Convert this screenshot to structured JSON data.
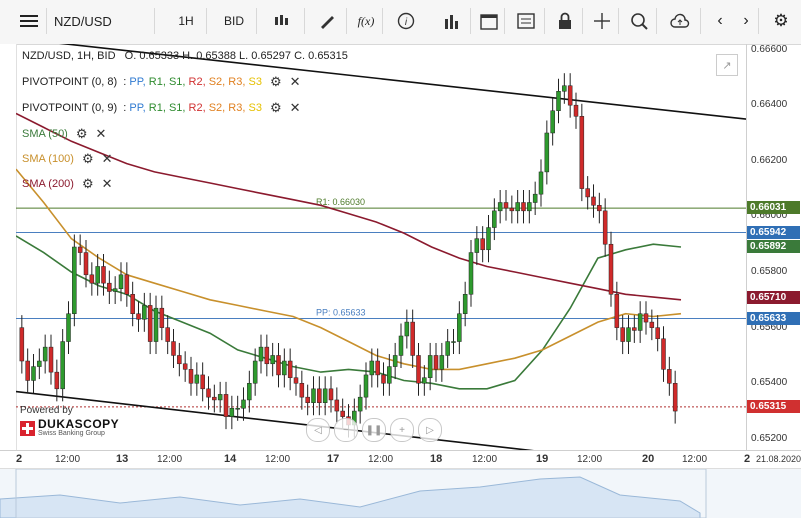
{
  "toolbar": {
    "symbol": "NZD/USD",
    "timeframe": "1H",
    "price_type": "BID",
    "icons": [
      "menu-icon",
      "candles-icon",
      "draw-icon",
      "function-icon",
      "info-icon",
      "bars-icon",
      "calendar-icon",
      "layout-icon",
      "lock-icon",
      "crosshair-icon",
      "zoom-icon",
      "upload-icon",
      "prev-icon",
      "next-icon",
      "settings-icon"
    ]
  },
  "header": {
    "ohlc": "NZD/USD, 1H, BID   O. 0.65333 H. 0.65388 L. 0.65297 C. 0.65315"
  },
  "indicators": [
    {
      "name": "PIVOTPOINT (0, 8)",
      "levels": [
        {
          "t": "PP",
          "c": "#2f7ad1"
        },
        {
          "t": "R1",
          "c": "#2e8b2e"
        },
        {
          "t": "S1",
          "c": "#2e8b2e"
        },
        {
          "t": "R2",
          "c": "#d03030"
        },
        {
          "t": "S2",
          "c": "#e08020"
        },
        {
          "t": "R3",
          "c": "#e08020"
        },
        {
          "t": "S3",
          "c": "#e6c000"
        }
      ]
    },
    {
      "name": "PIVOTPOINT (0, 9)",
      "levels": [
        {
          "t": "PP",
          "c": "#2f7ad1"
        },
        {
          "t": "R1",
          "c": "#2e8b2e"
        },
        {
          "t": "S1",
          "c": "#2e8b2e"
        },
        {
          "t": "R2",
          "c": "#d03030"
        },
        {
          "t": "S2",
          "c": "#e08020"
        },
        {
          "t": "R3",
          "c": "#e08020"
        },
        {
          "t": "S3",
          "c": "#e6c000"
        }
      ]
    },
    {
      "name": "SMA (50)",
      "color": "#3a7a3a"
    },
    {
      "name": "SMA (100)",
      "color": "#c8902c"
    },
    {
      "name": "SMA (200)",
      "color": "#8b1a2e"
    }
  ],
  "brand": {
    "powered": "Powered by",
    "name": "DUKASCOPY",
    "sub": "Swiss Banking Group"
  },
  "chart_data": {
    "type": "line",
    "title": "NZD/USD, 1H, BID",
    "ylim": [
      0.6516,
      0.6662
    ],
    "y_ticks": [
      0.652,
      0.654,
      0.656,
      0.658,
      0.66,
      0.662,
      0.664,
      0.666
    ],
    "x_ticks": [
      "2",
      "12:00",
      "13",
      "12:00",
      "14",
      "12:00",
      "17",
      "12:00",
      "18",
      "12:00",
      "19",
      "12:00",
      "20",
      "12:00",
      "2"
    ],
    "x_day_ticks": [
      "2",
      "13",
      "14",
      "17",
      "18",
      "19",
      "20",
      "2"
    ],
    "corner_date": "21.08.2020",
    "hlines": [
      {
        "name": "R1: 0.66030",
        "value": 0.6603,
        "color": "#4d7a2a",
        "label": "R1: 0.66030"
      },
      {
        "name": "PP: 0.65633",
        "value": 0.65633,
        "color": "#4a7fc0",
        "label": "PP: 0.65633"
      },
      {
        "name": "pp-9",
        "value": 0.65942,
        "color": "#4a7fc0",
        "label": ""
      },
      {
        "name": "last-price",
        "value": 0.65315,
        "color": "#b03030",
        "label": ""
      }
    ],
    "price_tags": [
      {
        "value": 0.66031,
        "text": "0.66031",
        "color": "#4d7a2a"
      },
      {
        "value": 0.65942,
        "text": "0.65942",
        "color": "#2f6fb5"
      },
      {
        "value": 0.65892,
        "text": "0.65892",
        "color": "#3a7a3a"
      },
      {
        "value": 0.6571,
        "text": "0.65710",
        "color": "#8b1a2e"
      },
      {
        "value": 0.65633,
        "text": "0.65633",
        "color": "#2f6fb5"
      },
      {
        "value": 0.65315,
        "text": "0.65315",
        "color": "#d03030"
      }
    ],
    "candles": [
      0.656,
      0.6548,
      0.6541,
      0.6546,
      0.6548,
      0.6553,
      0.6544,
      0.6538,
      0.6555,
      0.6565,
      0.6589,
      0.6587,
      0.6579,
      0.6576,
      0.6582,
      0.6576,
      0.6573,
      0.6574,
      0.6579,
      0.6572,
      0.6565,
      0.6563,
      0.6568,
      0.6555,
      0.6567,
      0.656,
      0.6555,
      0.655,
      0.6547,
      0.6545,
      0.654,
      0.6543,
      0.6538,
      0.6535,
      0.6534,
      0.6536,
      0.6528,
      0.6531,
      0.6531,
      0.6534,
      0.654,
      0.6548,
      0.6553,
      0.6547,
      0.655,
      0.6543,
      0.6548,
      0.6542,
      0.654,
      0.6535,
      0.6533,
      0.6538,
      0.6533,
      0.6538,
      0.6534,
      0.653,
      0.6528,
      0.6525,
      0.653,
      0.6535,
      0.6543,
      0.6548,
      0.6543,
      0.654,
      0.6546,
      0.655,
      0.6557,
      0.6562,
      0.655,
      0.654,
      0.6542,
      0.655,
      0.6545,
      0.655,
      0.6555,
      0.6555,
      0.6565,
      0.6572,
      0.6587,
      0.6592,
      0.6588,
      0.6596,
      0.6602,
      0.6605,
      0.6603,
      0.6602,
      0.6605,
      0.6602,
      0.6605,
      0.6608,
      0.6616,
      0.663,
      0.6638,
      0.6645,
      0.6647,
      0.664,
      0.6636,
      0.661,
      0.6607,
      0.6604,
      0.6602,
      0.659,
      0.6572,
      0.656,
      0.6555,
      0.656,
      0.6559,
      0.6565,
      0.6562,
      0.656,
      0.6556,
      0.6545,
      0.654,
      0.653
    ],
    "series": [
      {
        "name": "SMA (50)",
        "color": "#3a7a3a",
        "values": [
          0.6593,
          0.6587,
          0.658,
          0.6575,
          0.6572,
          0.6566,
          0.6562,
          0.6558,
          0.6552,
          0.6549,
          0.6546,
          0.6544,
          0.6545,
          0.6544,
          0.6541,
          0.654,
          0.6538,
          0.6538,
          0.6541,
          0.6552,
          0.6567,
          0.6585,
          0.6588,
          0.659,
          0.6589
        ]
      },
      {
        "name": "SMA (100)",
        "color": "#c8902c",
        "values": [
          0.6617,
          0.6605,
          0.6592,
          0.6585,
          0.6579,
          0.6576,
          0.6573,
          0.657,
          0.6568,
          0.6566,
          0.6564,
          0.656,
          0.6555,
          0.655,
          0.6547,
          0.6545,
          0.6545,
          0.6547,
          0.6549,
          0.6552,
          0.6557,
          0.6562,
          0.6565,
          0.6564,
          0.6565
        ]
      },
      {
        "name": "SMA (200)",
        "color": "#8b1a2e",
        "values": [
          0.6637,
          0.6632,
          0.6627,
          0.6623,
          0.6619,
          0.6616,
          0.6614,
          0.6612,
          0.661,
          0.6608,
          0.6606,
          0.6604,
          0.6601,
          0.6598,
          0.6594,
          0.6589,
          0.6585,
          0.6582,
          0.658,
          0.6578,
          0.6576,
          0.6574,
          0.6572,
          0.6571,
          0.657
        ]
      }
    ],
    "trendlines": [
      {
        "name": "upper-channel",
        "p1": [
          0,
          0.6664
        ],
        "p2": [
          1,
          0.6635
        ]
      },
      {
        "name": "lower-channel",
        "p1": [
          0,
          0.6537
        ],
        "p2": [
          1,
          0.6507
        ]
      }
    ]
  }
}
